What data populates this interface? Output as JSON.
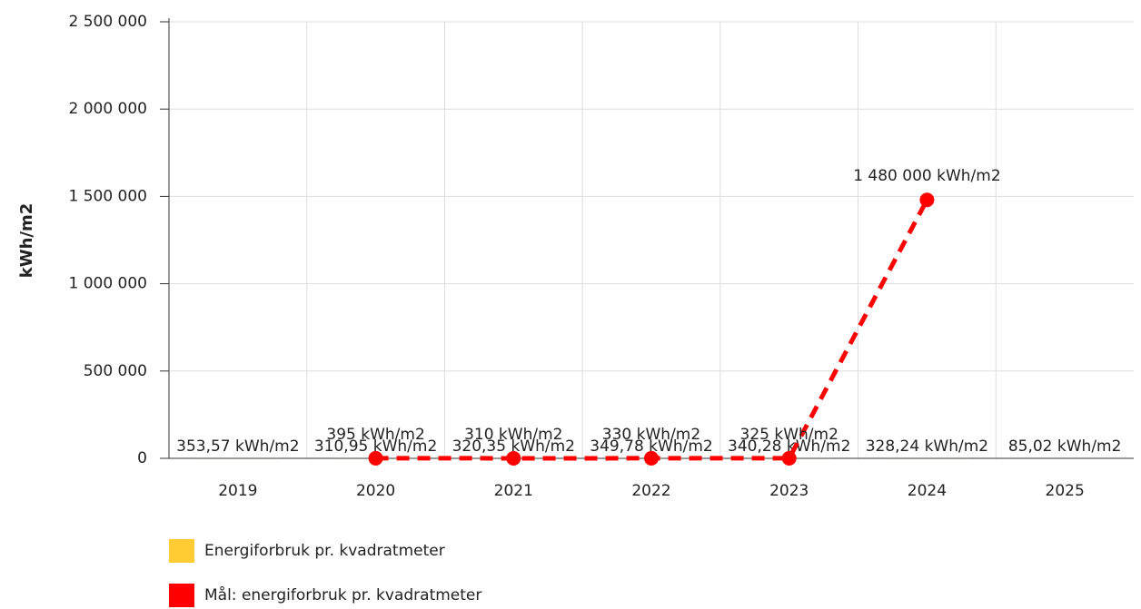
{
  "chart_data": {
    "type": "bar",
    "ylabel": "kWh/m2",
    "categories": [
      "2019",
      "2020",
      "2021",
      "2022",
      "2023",
      "2024",
      "2025"
    ],
    "series": [
      {
        "name": "Energiforbruk pr. kvadratmeter",
        "color": "#ffcc33",
        "type": "bar",
        "values": [
          353.57,
          310.95,
          320.35,
          349.78,
          340.28,
          328.24,
          85.02
        ],
        "value_labels": [
          "353,57 kWh/m2",
          "310,95 kWh/m2",
          "320,35 kWh/m2",
          "349,78 kWh/m2",
          "340,28 kWh/m2",
          "328,24 kWh/m2",
          "85,02 kWh/m2"
        ]
      },
      {
        "name": "Mål: energiforbruk pr. kvadratmeter",
        "color": "#ff0000",
        "type": "line",
        "values": [
          null,
          395,
          310,
          330,
          325,
          1480000,
          null
        ],
        "value_labels": [
          null,
          "395 kWh/m2",
          "310 kWh/m2",
          "330 kWh/m2",
          "325 kWh/m2",
          "1 480 000 kWh/m2",
          null
        ]
      }
    ],
    "ylim": [
      0,
      2500000
    ],
    "yticks": [
      0,
      {
        "value": 500000,
        "label": "500 000"
      },
      {
        "value": 1000000,
        "label": "1 000 000"
      },
      {
        "value": 1500000,
        "label": "1 500 000"
      },
      {
        "value": 2000000,
        "label": "2 000 000"
      },
      {
        "value": 2500000,
        "label": "2 500 000"
      }
    ],
    "grid": true,
    "legend": "bottom"
  }
}
